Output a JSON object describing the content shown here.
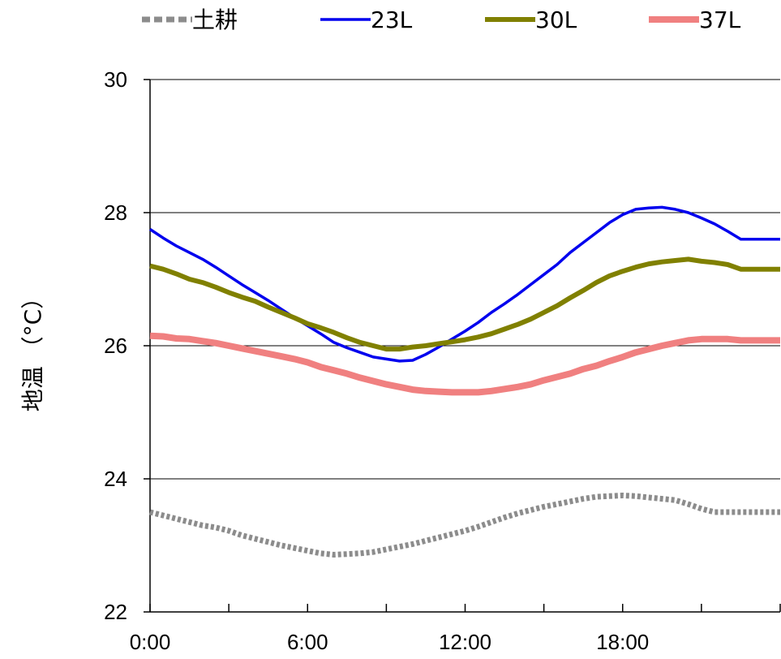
{
  "chart_data": {
    "type": "line",
    "xlabel": "",
    "ylabel": "地温 （°C）",
    "ylim": [
      22,
      30
    ],
    "yticks": [
      "22",
      "24",
      "26",
      "28",
      "30"
    ],
    "xlim": [
      0,
      24
    ],
    "xticks": [
      {
        "value": 0,
        "label": "0:00"
      },
      {
        "value": 6,
        "label": "6:00"
      },
      {
        "value": 12,
        "label": "12:00"
      },
      {
        "value": 18,
        "label": "18:00"
      }
    ],
    "grid": "horizontal",
    "legend_position": "top",
    "x_hours": [
      0,
      0.5,
      1,
      1.5,
      2,
      2.5,
      3,
      3.5,
      4,
      4.5,
      5,
      5.5,
      6,
      6.5,
      7,
      7.5,
      8,
      8.5,
      9,
      9.5,
      10,
      10.5,
      11,
      11.5,
      12,
      12.5,
      13,
      13.5,
      14,
      14.5,
      15,
      15.5,
      16,
      16.5,
      17,
      17.5,
      18,
      18.5,
      19,
      19.5,
      20,
      20.5,
      21,
      21.5,
      22,
      22.5,
      23,
      23.5,
      24
    ],
    "series": [
      {
        "name": "土耕",
        "color": "#8c8c8c",
        "style": "dotted-thick",
        "values": [
          23.5,
          23.45,
          23.4,
          23.35,
          23.3,
          23.27,
          23.22,
          23.15,
          23.1,
          23.05,
          23.0,
          22.96,
          22.92,
          22.88,
          22.86,
          22.87,
          22.88,
          22.9,
          22.94,
          22.98,
          23.02,
          23.07,
          23.12,
          23.17,
          23.22,
          23.28,
          23.35,
          23.42,
          23.48,
          23.53,
          23.58,
          23.62,
          23.66,
          23.7,
          23.73,
          23.74,
          23.75,
          23.74,
          23.72,
          23.7,
          23.68,
          23.62,
          23.55,
          23.5,
          23.5,
          23.5,
          23.5,
          23.5,
          23.5
        ]
      },
      {
        "name": "23L",
        "color": "#0000ee",
        "style": "thin",
        "values": [
          27.75,
          27.62,
          27.5,
          27.4,
          27.3,
          27.18,
          27.05,
          26.92,
          26.8,
          26.68,
          26.55,
          26.42,
          26.3,
          26.18,
          26.05,
          25.97,
          25.9,
          25.83,
          25.8,
          25.77,
          25.78,
          25.87,
          25.98,
          26.1,
          26.22,
          26.35,
          26.5,
          26.63,
          26.77,
          26.92,
          27.07,
          27.22,
          27.4,
          27.55,
          27.7,
          27.85,
          27.97,
          28.05,
          28.07,
          28.08,
          28.05,
          28.0,
          27.92,
          27.83,
          27.72,
          27.6,
          27.6,
          27.6,
          27.6
        ]
      },
      {
        "name": "30L",
        "color": "#808000",
        "style": "medium",
        "values": [
          27.2,
          27.15,
          27.08,
          27.0,
          26.95,
          26.88,
          26.8,
          26.73,
          26.67,
          26.58,
          26.5,
          26.42,
          26.33,
          26.27,
          26.2,
          26.12,
          26.05,
          26.0,
          25.95,
          25.95,
          25.98,
          26.0,
          26.03,
          26.06,
          26.09,
          26.13,
          26.18,
          26.25,
          26.32,
          26.4,
          26.5,
          26.6,
          26.72,
          26.83,
          26.95,
          27.05,
          27.12,
          27.18,
          27.23,
          27.26,
          27.28,
          27.3,
          27.27,
          27.25,
          27.22,
          27.15,
          27.15,
          27.15,
          27.15
        ]
      },
      {
        "name": "37L",
        "color": "#f08080",
        "style": "thick",
        "values": [
          26.15,
          26.14,
          26.11,
          26.1,
          26.07,
          26.04,
          26.0,
          25.96,
          25.92,
          25.88,
          25.84,
          25.8,
          25.75,
          25.68,
          25.63,
          25.58,
          25.52,
          25.47,
          25.42,
          25.38,
          25.34,
          25.32,
          25.31,
          25.3,
          25.3,
          25.3,
          25.32,
          25.35,
          25.38,
          25.42,
          25.48,
          25.53,
          25.58,
          25.65,
          25.7,
          25.77,
          25.83,
          25.9,
          25.95,
          26.0,
          26.04,
          26.08,
          26.1,
          26.1,
          26.1,
          26.08,
          26.08,
          26.08,
          26.08
        ]
      }
    ]
  }
}
